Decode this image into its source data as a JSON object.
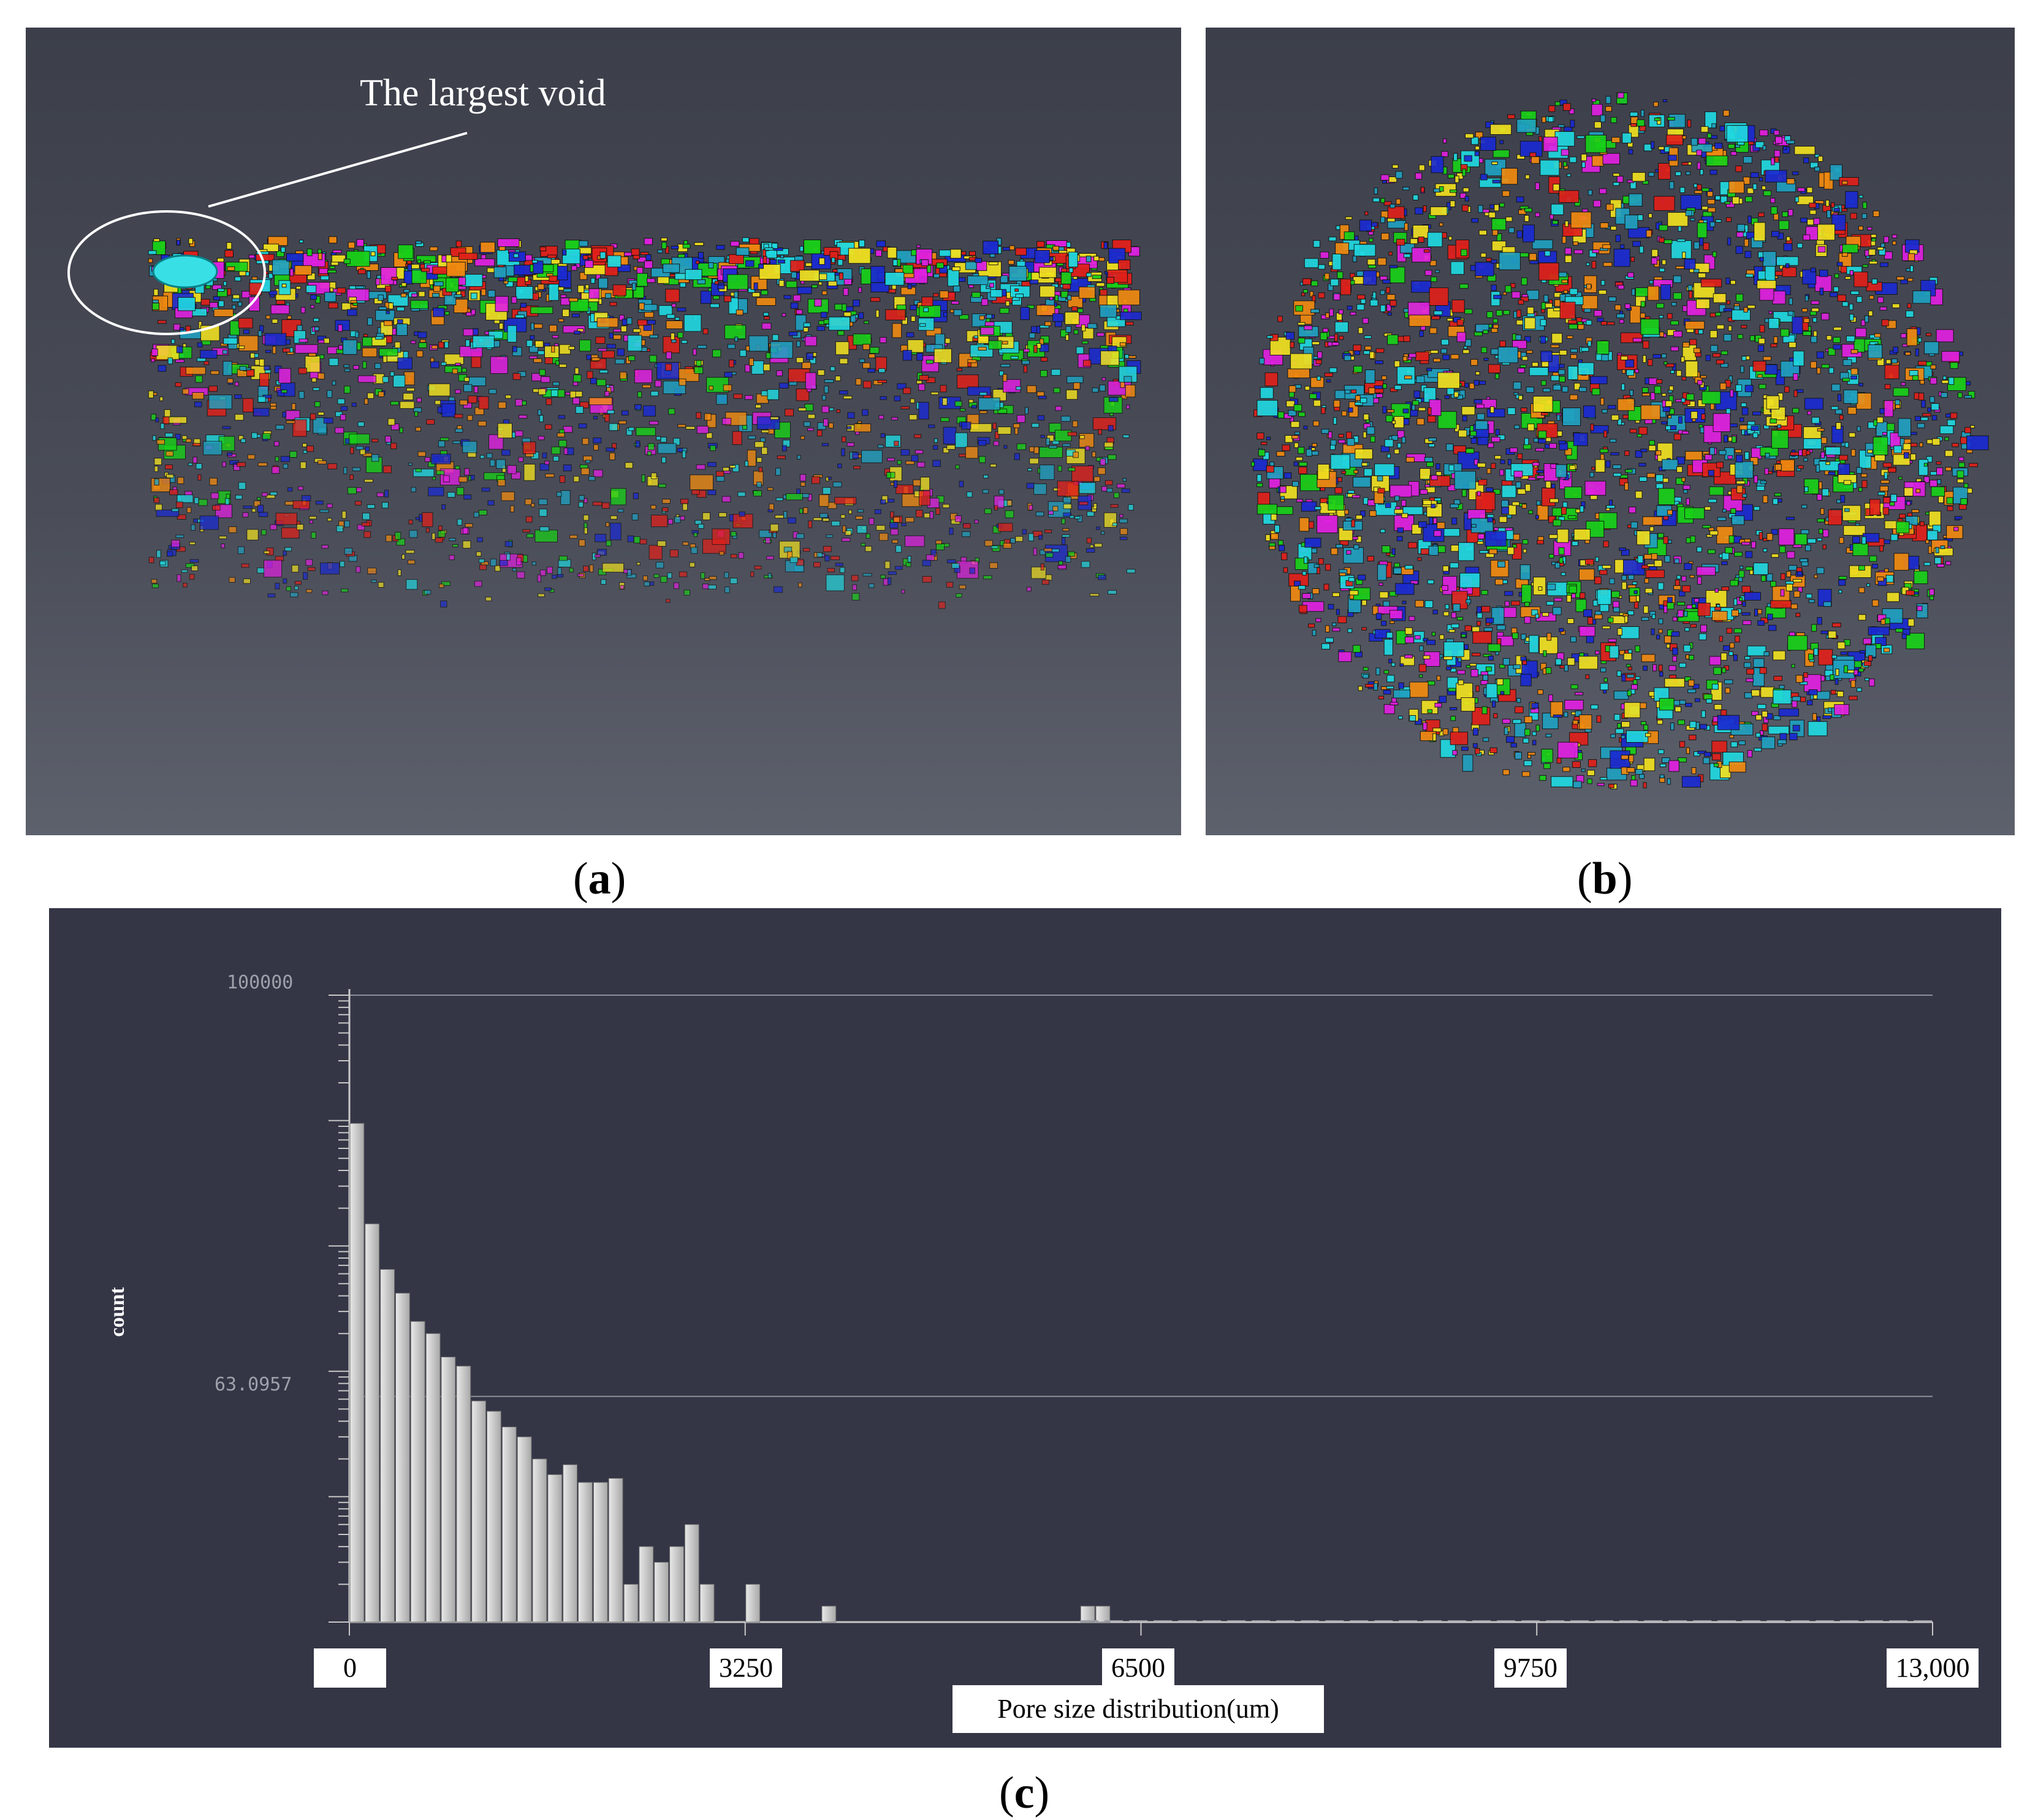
{
  "panels": {
    "a": {
      "caption_label": "a",
      "annotation": "The largest void"
    },
    "b": {
      "caption_label": "b"
    },
    "c": {
      "caption_label": "c"
    }
  },
  "colors": {
    "background_dark": "#343646",
    "bar_fill": "#c8c8c8",
    "void_palette": [
      "#e0201a",
      "#1a2ad0",
      "#18d018",
      "#f0e020",
      "#e020e0",
      "#20d8e0",
      "#f08a10",
      "#20a0c0"
    ]
  },
  "chart_data": {
    "type": "bar",
    "title": "",
    "xlabel": "Pore size distribution(um)",
    "ylabel": "count",
    "yscale": "log",
    "ylim": [
      1,
      100000
    ],
    "xlim": [
      0,
      13000
    ],
    "x_ticks": [
      "0",
      "3250",
      "6500",
      "9750",
      "13,000"
    ],
    "y_ticks": [
      "100000",
      "63.0957"
    ],
    "grid": true,
    "bin_width": 125,
    "values": [
      9500,
      1500,
      650,
      420,
      250,
      200,
      130,
      110,
      58,
      48,
      36,
      30,
      20,
      15,
      18,
      13,
      13,
      14,
      2,
      4,
      3,
      4,
      6,
      2,
      0,
      0,
      2,
      0,
      0,
      0,
      0,
      1,
      0,
      0,
      0,
      0,
      0,
      0,
      0,
      0,
      0,
      0,
      0,
      0,
      0,
      0,
      0,
      0,
      1,
      1
    ]
  }
}
